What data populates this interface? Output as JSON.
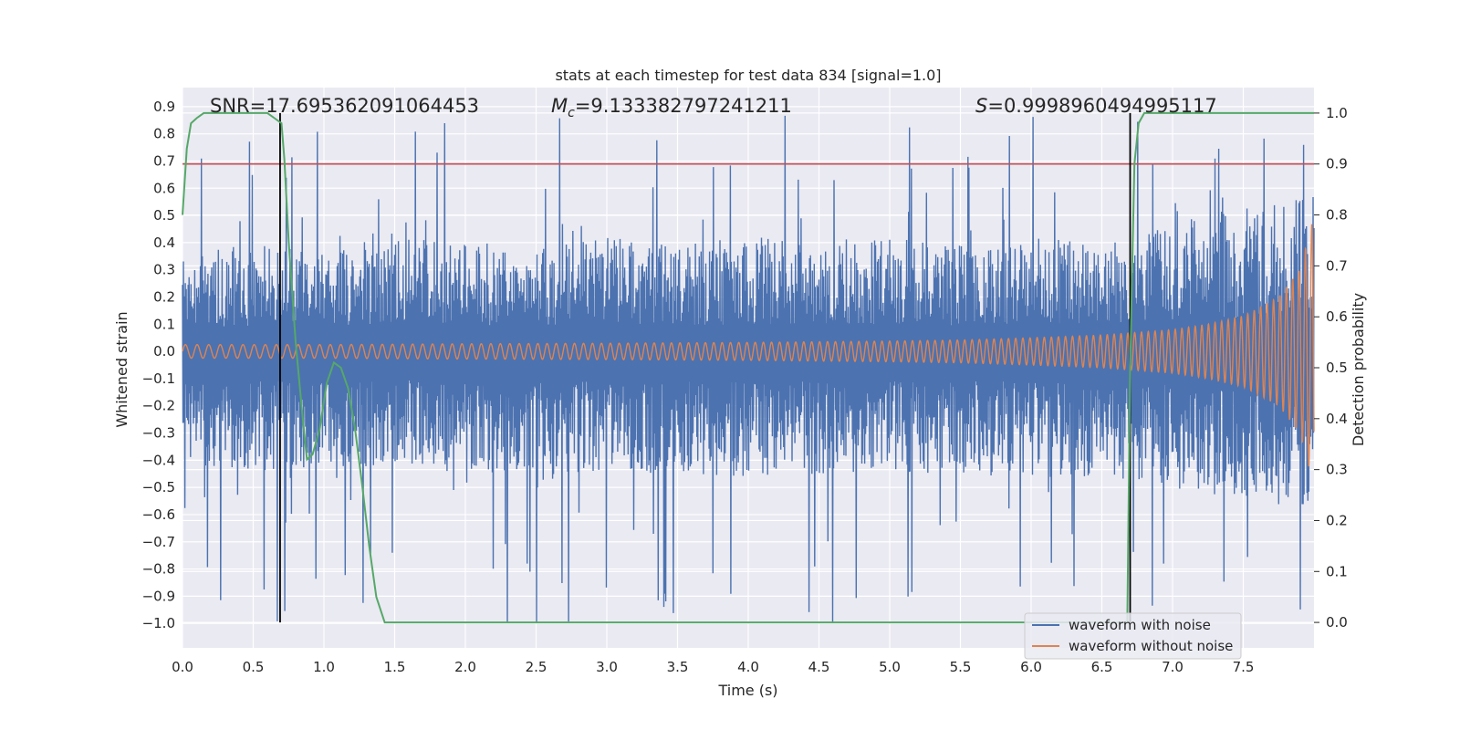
{
  "chart_data": {
    "type": "line",
    "title": "stats at each timestep for test data 834 [signal=1.0]",
    "xlabel": "Time (s)",
    "ylabel_left": "Whitened strain",
    "ylabel_right": "Detection probability",
    "xlim": [
      0.0,
      8.0
    ],
    "ylim_left": [
      -1.09,
      0.97
    ],
    "ylim_right": [
      -0.05,
      1.05
    ],
    "x_ticks": [
      "0.0",
      "0.5",
      "1.0",
      "1.5",
      "2.0",
      "2.5",
      "3.0",
      "3.5",
      "4.0",
      "4.5",
      "5.0",
      "5.5",
      "6.0",
      "6.5",
      "7.0",
      "7.5"
    ],
    "y_left_ticks": [
      "0.9",
      "0.8",
      "0.7",
      "0.6",
      "0.5",
      "0.4",
      "0.3",
      "0.2",
      "0.1",
      "0.0",
      "−0.1",
      "−0.2",
      "−0.3",
      "−0.4",
      "−0.5",
      "−0.6",
      "−0.7",
      "−0.8",
      "−0.9",
      "−1.0"
    ],
    "y_right_ticks": [
      "1.0",
      "0.9",
      "0.8",
      "0.7",
      "0.6",
      "0.5",
      "0.4",
      "0.3",
      "0.2",
      "0.1",
      "0.0"
    ],
    "grid": true,
    "annotations": {
      "snr": "SNR=17.695362091064453",
      "mc_symbol": "M",
      "mc_sub": "c",
      "mc_value": "=9.133382797241211",
      "s_symbol": "S",
      "s_value": "=0.9998960494995117"
    },
    "threshold": {
      "detection_probability": 0.9,
      "color": "#c44e52"
    },
    "vertical_markers_s": [
      0.69,
      6.7
    ],
    "noise_envelope": {
      "t": [
        0.0,
        0.5,
        1.0,
        1.5,
        2.0,
        2.5,
        3.0,
        3.5,
        4.0,
        4.5,
        5.0,
        5.5,
        6.0,
        6.5,
        7.0,
        7.5,
        8.0
      ],
      "typical_upper": [
        0.35,
        0.38,
        0.36,
        0.4,
        0.38,
        0.39,
        0.4,
        0.38,
        0.4,
        0.39,
        0.4,
        0.38,
        0.4,
        0.39,
        0.45,
        0.5,
        0.55
      ],
      "typical_lower": [
        -0.4,
        -0.42,
        -0.41,
        -0.43,
        -0.42,
        -0.43,
        -0.42,
        -0.43,
        -0.44,
        -0.43,
        -0.42,
        -0.43,
        -0.44,
        -0.45,
        -0.48,
        -0.52,
        -0.55
      ],
      "max_peak": 0.87,
      "min_peak": -1.0
    },
    "clean_waveform_amplitude": {
      "t": [
        0.0,
        1.0,
        2.0,
        3.0,
        4.0,
        5.0,
        5.5,
        6.0,
        6.5,
        7.0,
        7.25,
        7.5,
        7.75,
        7.9,
        8.0
      ],
      "amplitude": [
        0.025,
        0.025,
        0.028,
        0.03,
        0.033,
        0.038,
        0.042,
        0.05,
        0.06,
        0.08,
        0.1,
        0.13,
        0.2,
        0.3,
        0.5
      ]
    },
    "series": [
      {
        "name": "waveform with noise",
        "color": "#4c72b0",
        "axis": "left"
      },
      {
        "name": "waveform without noise",
        "color": "#dd8452",
        "axis": "left"
      },
      {
        "name": "detection probability",
        "color": "#55a868",
        "axis": "right",
        "x": [
          0.0,
          0.03,
          0.06,
          0.1,
          0.15,
          0.2,
          0.3,
          0.4,
          0.5,
          0.6,
          0.65,
          0.7,
          0.72,
          0.75,
          0.8,
          0.85,
          0.88,
          0.92,
          0.97,
          1.02,
          1.07,
          1.12,
          1.17,
          1.22,
          1.27,
          1.32,
          1.37,
          1.43,
          1.5,
          2.0,
          3.0,
          4.0,
          5.0,
          6.0,
          6.68,
          6.7,
          6.73,
          6.76,
          6.8,
          6.9,
          7.0,
          7.5,
          8.0
        ],
        "y": [
          0.8,
          0.93,
          0.98,
          0.99,
          1.0,
          1.0,
          1.0,
          1.0,
          1.0,
          1.0,
          0.99,
          0.98,
          0.91,
          0.75,
          0.55,
          0.4,
          0.32,
          0.33,
          0.38,
          0.47,
          0.51,
          0.5,
          0.46,
          0.38,
          0.27,
          0.15,
          0.05,
          0.0,
          0.0,
          0.0,
          0.0,
          0.0,
          0.0,
          0.0,
          0.0,
          0.5,
          0.9,
          0.98,
          1.0,
          1.0,
          1.0,
          1.0,
          1.0
        ]
      }
    ],
    "legend": {
      "position": "lower-right",
      "entries": [
        {
          "label": "waveform with noise",
          "color": "#4c72b0"
        },
        {
          "label": "waveform without noise",
          "color": "#dd8452"
        }
      ]
    }
  }
}
